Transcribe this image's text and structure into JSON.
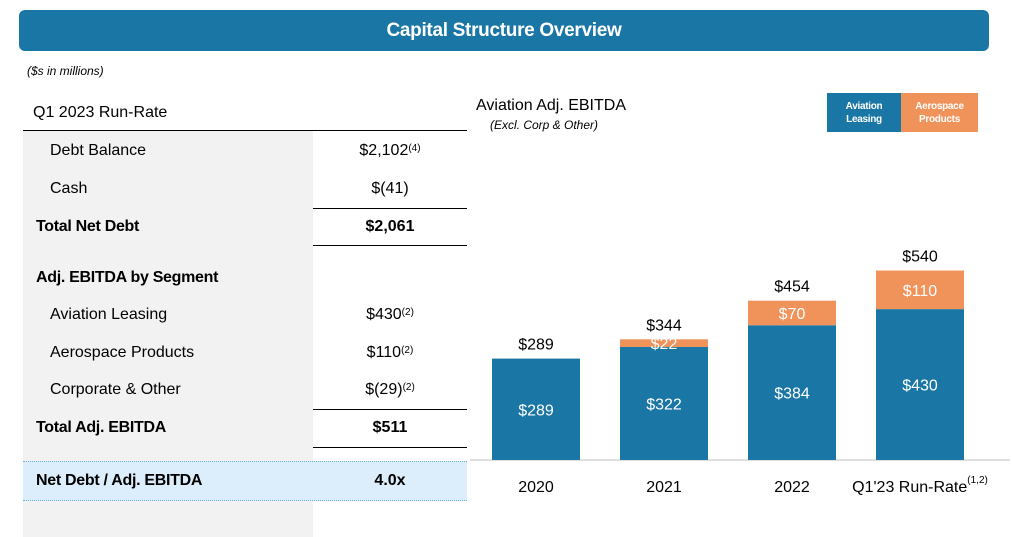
{
  "header": {
    "title": "Capital Structure Overview"
  },
  "units_note": "($s in millions)",
  "table": {
    "title": "Q1 2023 Run-Rate",
    "debt_balance": {
      "label": "Debt Balance",
      "value": "$2,102",
      "note": "(4)"
    },
    "cash": {
      "label": "Cash",
      "value": "$(41)",
      "note": ""
    },
    "total_net_debt": {
      "label": "Total Net Debt",
      "value": "$2,061"
    },
    "segment_header": {
      "label": "Adj. EBITDA by Segment"
    },
    "aviation": {
      "label": "Aviation Leasing",
      "value": "$430",
      "note": "(2)"
    },
    "aerospace": {
      "label": "Aerospace Products",
      "value": "$110",
      "note": "(2)"
    },
    "corporate": {
      "label": "Corporate & Other",
      "value": "$(29)",
      "note": "(2)"
    },
    "total_ebitda": {
      "label": "Total Adj. EBITDA",
      "value": "$511"
    },
    "leverage": {
      "label": "Net Debt / Adj. EBITDA",
      "value": "4.0x"
    }
  },
  "chart_data": {
    "type": "bar",
    "stacked": true,
    "title": "Aviation Adj. EBITDA",
    "subtitle": "(Excl. Corp & Other)",
    "categories": [
      "2020",
      "2021",
      "2022",
      "Q1'23 Run-Rate"
    ],
    "category_notes": [
      "",
      "",
      "",
      "(1,2)"
    ],
    "series": [
      {
        "name": "Aviation Leasing",
        "values": [
          289,
          322,
          384,
          430
        ],
        "labels": [
          "$289",
          "$322",
          "$384",
          "$430"
        ],
        "color": "#1a76a5"
      },
      {
        "name": "Aerospace Products",
        "values": [
          0,
          22,
          70,
          110
        ],
        "labels": [
          "",
          "$22",
          "$70",
          "$110"
        ],
        "color": "#f0935b"
      }
    ],
    "totals": [
      "$289",
      "$344",
      "$454",
      "$540"
    ],
    "ylim": [
      0,
      600
    ],
    "legend": [
      "Aviation Leasing",
      "Aerospace Products"
    ],
    "legend_position": "top-right",
    "grid": false
  }
}
